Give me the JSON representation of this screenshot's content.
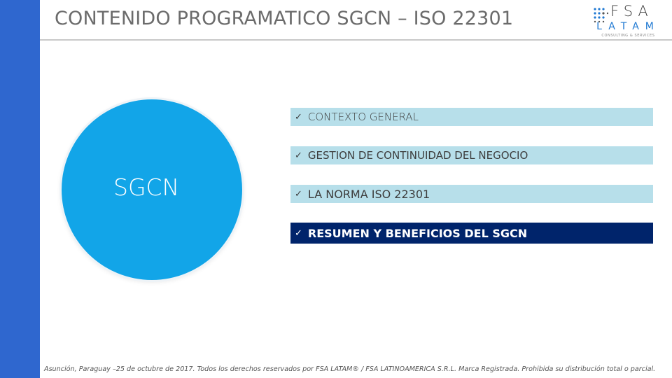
{
  "slide": {
    "title": "CONTENIDO PROGRAMATICO SGCN – ISO 22301",
    "logo": {
      "top": "FSA",
      "bottom": "LATAM",
      "tagline": "CONSULTING & SERVICES",
      "accent_color": "#1e78d2"
    },
    "sidebar_color": "#2f67cf"
  },
  "circle": {
    "label": "SGCN",
    "color": "#12a5e8"
  },
  "agenda": {
    "check_glyph": "✓",
    "items": [
      {
        "label": "CONTEXTO GENERAL",
        "active": false
      },
      {
        "label": "GESTION DE CONTINUIDAD DEL NEGOCIO",
        "active": false
      },
      {
        "label": "LA NORMA ISO 22301",
        "active": false
      },
      {
        "label": "RESUMEN Y BENEFICIOS DEL SGCN",
        "active": true
      }
    ],
    "inactive_color": "#b7dfea",
    "active_color": "#00246b"
  },
  "footer": {
    "text": "Asunción, Paraguay –25 de octubre de 2017. Todos los derechos reservados por FSA LATAM® / FSA LATINOAMERICA S.R.L. Marca Registrada. Prohibida su  distribución total o parcial."
  }
}
